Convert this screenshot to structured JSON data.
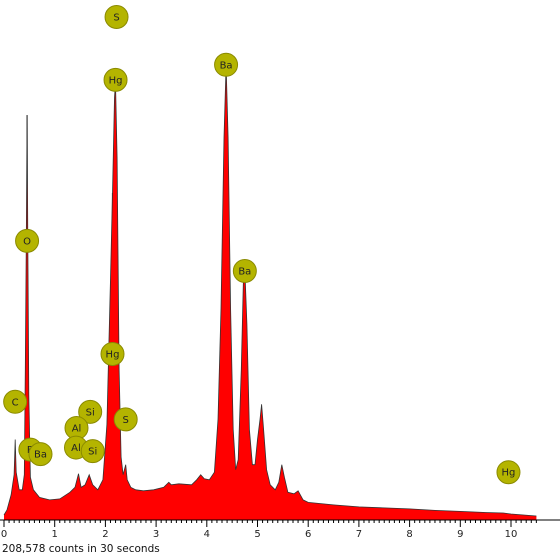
{
  "chart_data": {
    "type": "area",
    "x_ticks": [
      "0",
      "1",
      "2",
      "3",
      "4",
      "5",
      "6",
      "7",
      "8",
      "9",
      "10"
    ],
    "xlim": [
      0,
      10.5
    ],
    "ylim": [
      0,
      1.0
    ],
    "fill_color": "#ff0000",
    "outline_color": "#333333",
    "marker_color": "#b4b400",
    "marker_border": "#8a8a00",
    "spectrum": [
      [
        0.0,
        0.01
      ],
      [
        0.06,
        0.02
      ],
      [
        0.14,
        0.05
      ],
      [
        0.2,
        0.09
      ],
      [
        0.22,
        0.16
      ],
      [
        0.24,
        0.095
      ],
      [
        0.3,
        0.06
      ],
      [
        0.36,
        0.06
      ],
      [
        0.4,
        0.09
      ],
      [
        0.42,
        0.3
      ],
      [
        0.44,
        0.56
      ],
      [
        0.455,
        0.805
      ],
      [
        0.47,
        0.56
      ],
      [
        0.49,
        0.25
      ],
      [
        0.52,
        0.085
      ],
      [
        0.58,
        0.06
      ],
      [
        0.7,
        0.045
      ],
      [
        0.9,
        0.04
      ],
      [
        1.1,
        0.042
      ],
      [
        1.3,
        0.055
      ],
      [
        1.4,
        0.065
      ],
      [
        1.47,
        0.092
      ],
      [
        1.52,
        0.065
      ],
      [
        1.6,
        0.07
      ],
      [
        1.68,
        0.09
      ],
      [
        1.75,
        0.07
      ],
      [
        1.85,
        0.06
      ],
      [
        1.95,
        0.08
      ],
      [
        2.03,
        0.19
      ],
      [
        2.1,
        0.48
      ],
      [
        2.14,
        0.65
      ],
      [
        2.18,
        0.84
      ],
      [
        2.2,
        0.87
      ],
      [
        2.23,
        0.72
      ],
      [
        2.27,
        0.3
      ],
      [
        2.31,
        0.125
      ],
      [
        2.35,
        0.09
      ],
      [
        2.4,
        0.11
      ],
      [
        2.43,
        0.08
      ],
      [
        2.5,
        0.065
      ],
      [
        2.6,
        0.06
      ],
      [
        2.75,
        0.058
      ],
      [
        2.95,
        0.06
      ],
      [
        3.15,
        0.065
      ],
      [
        3.25,
        0.075
      ],
      [
        3.3,
        0.07
      ],
      [
        3.45,
        0.072
      ],
      [
        3.7,
        0.07
      ],
      [
        3.8,
        0.08
      ],
      [
        3.88,
        0.09
      ],
      [
        3.95,
        0.082
      ],
      [
        4.05,
        0.08
      ],
      [
        4.15,
        0.095
      ],
      [
        4.22,
        0.2
      ],
      [
        4.28,
        0.42
      ],
      [
        4.34,
        0.76
      ],
      [
        4.38,
        0.905
      ],
      [
        4.42,
        0.76
      ],
      [
        4.47,
        0.42
      ],
      [
        4.52,
        0.18
      ],
      [
        4.57,
        0.1
      ],
      [
        4.62,
        0.12
      ],
      [
        4.68,
        0.3
      ],
      [
        4.72,
        0.47
      ],
      [
        4.75,
        0.5
      ],
      [
        4.79,
        0.39
      ],
      [
        4.84,
        0.18
      ],
      [
        4.9,
        0.11
      ],
      [
        4.95,
        0.11
      ],
      [
        5.0,
        0.16
      ],
      [
        5.05,
        0.2
      ],
      [
        5.08,
        0.23
      ],
      [
        5.12,
        0.18
      ],
      [
        5.18,
        0.1
      ],
      [
        5.25,
        0.07
      ],
      [
        5.35,
        0.06
      ],
      [
        5.42,
        0.075
      ],
      [
        5.48,
        0.11
      ],
      [
        5.53,
        0.085
      ],
      [
        5.6,
        0.055
      ],
      [
        5.72,
        0.052
      ],
      [
        5.8,
        0.058
      ],
      [
        5.9,
        0.04
      ],
      [
        6.0,
        0.035
      ],
      [
        6.5,
        0.03
      ],
      [
        7.0,
        0.026
      ],
      [
        7.5,
        0.024
      ],
      [
        8.0,
        0.022
      ],
      [
        8.5,
        0.019
      ],
      [
        9.0,
        0.017
      ],
      [
        9.5,
        0.015
      ],
      [
        9.85,
        0.014
      ],
      [
        10.0,
        0.012
      ],
      [
        10.5,
        0.008
      ]
    ],
    "markers": [
      {
        "label": "S",
        "x": 2.22,
        "y": 0.87,
        "level": 1.0
      },
      {
        "label": "Hg",
        "x": 2.2,
        "y": 0.87,
        "level": 0.875
      },
      {
        "label": "Ba",
        "x": 4.38,
        "y": 0.905,
        "level": 0.905
      },
      {
        "label": "O",
        "x": 0.455,
        "y": 0.805,
        "level": 0.555
      },
      {
        "label": "Ba",
        "x": 4.75,
        "y": 0.5,
        "level": 0.495
      },
      {
        "label": "Hg",
        "x": 2.14,
        "y": 0.65,
        "level": 0.33
      },
      {
        "label": "C",
        "x": 0.22,
        "y": 0.16,
        "level": 0.235
      },
      {
        "label": "Si",
        "x": 1.7,
        "y": 0.09,
        "level": 0.215
      },
      {
        "label": "S",
        "x": 2.4,
        "y": 0.11,
        "level": 0.2
      },
      {
        "label": "Al",
        "x": 1.43,
        "y": 0.092,
        "level": 0.183
      },
      {
        "label": "Al",
        "x": 1.42,
        "y": 0.092,
        "level": 0.144
      },
      {
        "label": "Si",
        "x": 1.75,
        "y": 0.07,
        "level": 0.137
      },
      {
        "label": "B",
        "x": 0.52,
        "y": 0.085,
        "level": 0.14
      },
      {
        "label": "Ba",
        "x": 0.72,
        "y": 0.045,
        "level": 0.131
      },
      {
        "label": "Hg",
        "x": 9.95,
        "y": 0.014,
        "level": 0.095
      }
    ]
  },
  "footer": {
    "counts_text": "208,578 counts in 30 seconds"
  }
}
